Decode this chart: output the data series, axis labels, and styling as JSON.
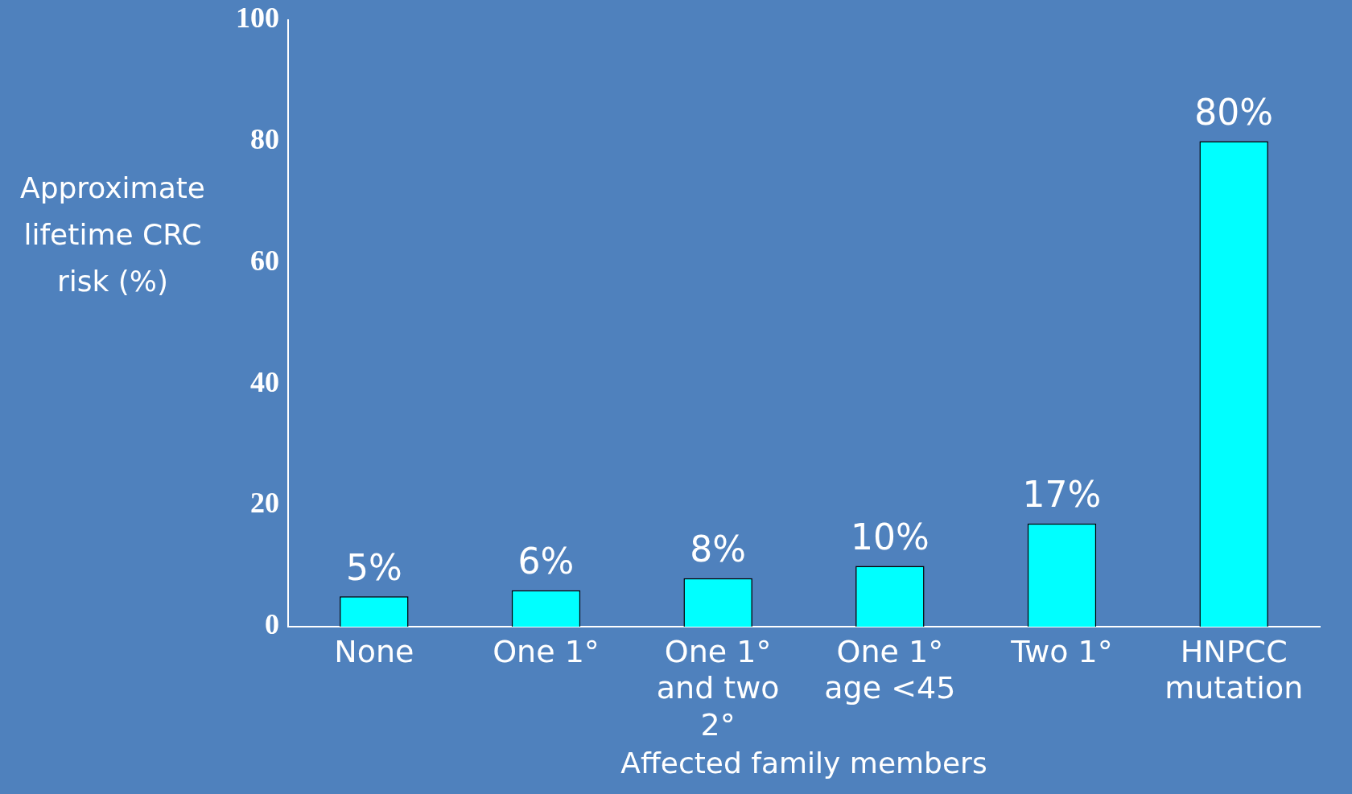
{
  "chart_data": {
    "type": "bar",
    "categories": [
      "None",
      "One 1°",
      "One 1° and two 2°",
      "One 1° age <45",
      "Two 1°",
      "HNPCC mutation"
    ],
    "values": [
      5,
      6,
      8,
      10,
      17,
      80
    ],
    "value_labels": [
      "5%",
      "6%",
      "8%",
      "10%",
      "17%",
      "80%"
    ],
    "color": "#00ffff",
    "xlabel": "Affected family members",
    "ylabel": "Approximate lifetime CRC risk (%)",
    "ylim": [
      0,
      100
    ],
    "yticks": [
      0,
      20,
      40,
      60,
      80,
      100
    ],
    "grid": false,
    "legend": false
  }
}
